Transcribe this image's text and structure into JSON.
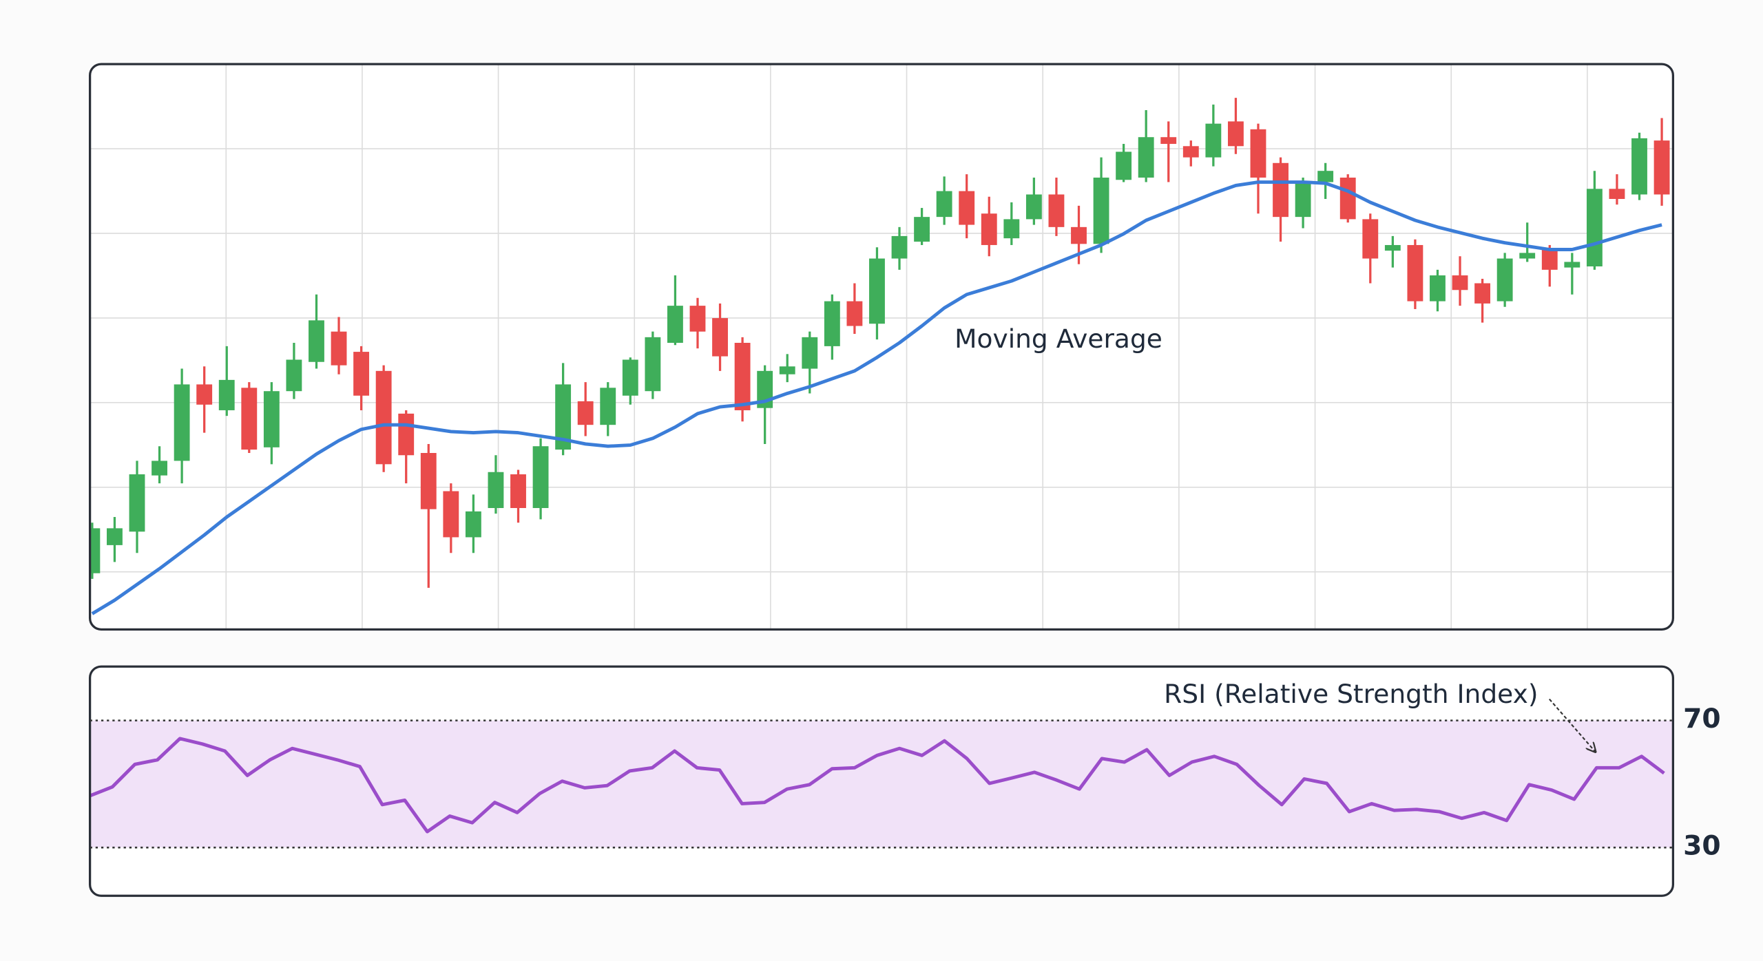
{
  "chart_data": [
    {
      "type": "candlestick",
      "open": [
        50,
        75,
        87,
        137,
        150,
        218,
        195,
        215,
        162,
        212,
        238,
        265,
        247,
        230,
        192,
        157,
        123,
        82,
        108,
        138,
        108,
        160,
        203,
        182,
        208,
        212,
        255,
        288,
        277,
        255,
        197,
        227,
        232,
        252,
        292,
        272,
        330,
        345,
        367,
        390,
        370,
        348,
        365,
        387,
        358,
        343,
        400,
        402,
        438,
        430,
        420,
        452,
        445,
        415,
        367,
        398,
        402,
        365,
        337,
        342,
        292,
        315,
        308,
        292,
        330,
        338,
        322,
        323,
        392,
        387,
        435
      ],
      "high": [
        95,
        100,
        150,
        163,
        232,
        234,
        252,
        220,
        220,
        255,
        298,
        278,
        252,
        235,
        195,
        165,
        130,
        120,
        155,
        142,
        170,
        237,
        220,
        220,
        242,
        265,
        315,
        295,
        290,
        260,
        235,
        245,
        265,
        298,
        308,
        340,
        358,
        375,
        403,
        405,
        385,
        380,
        402,
        402,
        377,
        420,
        432,
        462,
        452,
        435,
        467,
        473,
        450,
        420,
        402,
        415,
        405,
        370,
        350,
        347,
        320,
        332,
        312,
        335,
        362,
        342,
        335,
        408,
        405,
        442,
        455
      ],
      "low": [
        45,
        60,
        68,
        130,
        130,
        175,
        190,
        157,
        147,
        205,
        232,
        227,
        195,
        140,
        130,
        37,
        68,
        68,
        103,
        95,
        98,
        155,
        172,
        172,
        200,
        205,
        253,
        250,
        230,
        185,
        165,
        220,
        210,
        240,
        263,
        258,
        320,
        342,
        360,
        348,
        332,
        342,
        360,
        350,
        325,
        335,
        398,
        398,
        398,
        412,
        412,
        423,
        370,
        345,
        357,
        383,
        362,
        308,
        322,
        285,
        283,
        288,
        273,
        287,
        327,
        305,
        298,
        320,
        378,
        382,
        377
      ],
      "close": [
        90,
        90,
        138,
        150,
        218,
        200,
        222,
        160,
        212,
        240,
        275,
        235,
        208,
        147,
        155,
        107,
        82,
        105,
        140,
        108,
        163,
        218,
        182,
        215,
        240,
        260,
        288,
        265,
        243,
        195,
        230,
        234,
        260,
        292,
        270,
        330,
        350,
        367,
        390,
        360,
        342,
        365,
        387,
        358,
        343,
        402,
        425,
        438,
        432,
        420,
        450,
        430,
        402,
        367,
        398,
        408,
        365,
        330,
        342,
        292,
        315,
        302,
        290,
        330,
        335,
        320,
        327,
        392,
        383,
        437,
        387
      ],
      "up_color": "#3fae5a",
      "down_color": "#e94b4b",
      "series": [
        {
          "name": "Moving Average",
          "color": "#3b7dd8",
          "values": [
            14,
            26,
            40,
            54,
            69,
            84,
            100,
            114,
            128,
            142,
            156,
            168,
            178,
            182,
            182,
            179,
            176,
            175,
            176,
            175,
            172,
            169,
            165,
            163,
            164,
            170,
            180,
            192,
            198,
            200,
            203,
            210,
            216,
            223,
            230,
            242,
            255,
            270,
            286,
            298,
            304,
            310,
            318,
            326,
            334,
            342,
            352,
            364,
            372,
            380,
            388,
            395,
            398,
            398,
            398,
            397,
            390,
            380,
            372,
            364,
            358,
            353,
            348,
            344,
            341,
            338,
            338,
            343,
            349,
            355,
            360
          ]
        }
      ],
      "ylim": [
        0,
        500
      ],
      "grid": true
    },
    {
      "type": "line",
      "series": [
        {
          "name": "RSI (Relative Strength Index)",
          "color": "#9b4dca",
          "values": [
            46.3,
            49.1,
            56.2,
            57.6,
            64.3,
            62.6,
            60.4,
            52.7,
            57.6,
            61.2,
            59.4,
            57.6,
            55.5,
            43.5,
            44.9,
            35.0,
            39.9,
            37.8,
            44.2,
            41.0,
            47.0,
            50.9,
            48.8,
            49.5,
            54.1,
            55.1,
            60.4,
            55.1,
            54.4,
            43.8,
            44.2,
            48.4,
            49.8,
            54.8,
            55.1,
            59.0,
            61.2,
            59.0,
            63.6,
            58.0,
            50.2,
            51.9,
            53.7,
            51.2,
            48.4,
            58.0,
            56.9,
            60.8,
            52.7,
            56.9,
            58.7,
            56.2,
            49.5,
            43.5,
            51.6,
            50.2,
            41.3,
            43.8,
            41.7,
            42.0,
            41.3,
            39.2,
            41.0,
            38.5,
            49.8,
            48.1,
            45.2,
            55.1,
            55.1,
            58.7,
            53.4
          ]
        }
      ],
      "ylim": [
        14.8,
        87
      ],
      "yticks": [
        30,
        70
      ],
      "band_color": "#f1e2f8"
    }
  ]
}
